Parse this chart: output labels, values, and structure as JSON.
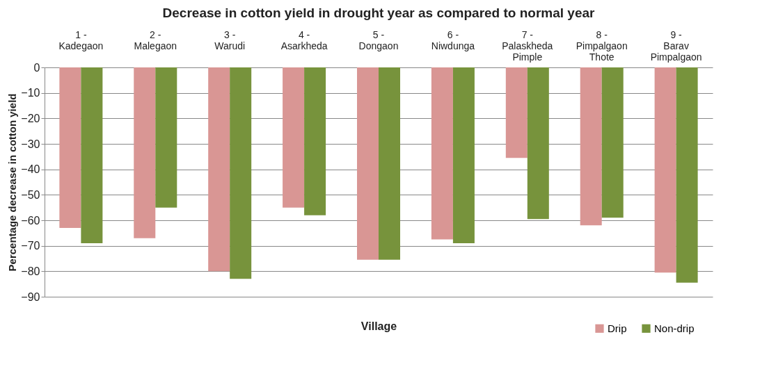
{
  "chart_data": {
    "type": "bar",
    "title": "Decrease in cotton yield in drought year as compared to normal year",
    "xlabel": "Village",
    "ylabel": "Percentage decrease in cotton yield",
    "categories": [
      "1 - Kadegaon",
      "2 - Malegaon",
      "3 - Warudi",
      "4 - Asarkheda",
      "5 - Dongaon",
      "6 - Niwdunga",
      "7 - Palaskheda Pimple",
      "8 - Pimpalgaon Thote",
      "9 - Barav Pimpalgaon"
    ],
    "series": [
      {
        "name": "Drip",
        "color": "#d99694",
        "values": [
          -63,
          -67,
          -80,
          -55,
          -75.5,
          -67.5,
          -35.5,
          -62,
          -80.5
        ]
      },
      {
        "name": "Non-drip",
        "color": "#77933c",
        "values": [
          -69,
          -55,
          -83,
          -58,
          -75.5,
          -69,
          -59.5,
          -59,
          -84.5
        ]
      }
    ],
    "ylim": [
      -90,
      0
    ],
    "yticks": [
      -90,
      -80,
      -70,
      -60,
      -50,
      -40,
      -30,
      -20,
      -10,
      0
    ],
    "grid": "y",
    "legend": "bottom right"
  }
}
